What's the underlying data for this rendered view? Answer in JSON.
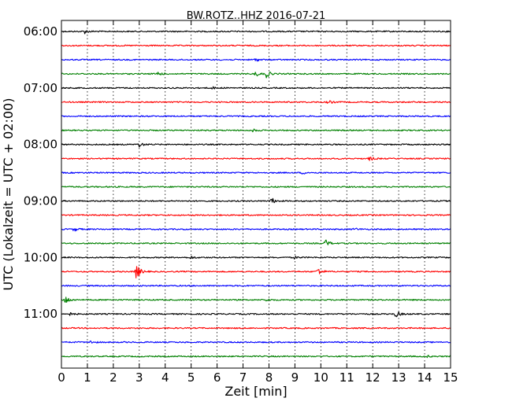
{
  "chart_data": {
    "type": "line",
    "title": "BW.ROTZ..HHZ 2016-07-21",
    "xlabel": "Zeit  [min]",
    "ylabel": "UTC (Lokalzeit = UTC + 02:00)",
    "xlim": [
      0,
      15
    ],
    "x_ticks": [
      "0",
      "1",
      "2",
      "3",
      "4",
      "5",
      "6",
      "7",
      "8",
      "9",
      "10",
      "11",
      "12",
      "13",
      "14",
      "15"
    ],
    "y_ticks": [
      "06:00",
      "07:00",
      "08:00",
      "09:00",
      "10:00",
      "11:00"
    ],
    "y_ticks_at_trace": [
      0,
      4,
      8,
      12,
      16,
      20
    ],
    "trace_interval_min": 15,
    "traces_per_hour": 4,
    "grid": "vertical dotted at each minute",
    "colors": [
      "#000000",
      "#ff0000",
      "#0000ff",
      "#008000"
    ],
    "traces": [
      {
        "start": "06:00",
        "color": "#000000",
        "events": [
          {
            "t": 0.9,
            "amp": 0.25
          }
        ]
      },
      {
        "start": "06:15",
        "color": "#ff0000",
        "events": []
      },
      {
        "start": "06:30",
        "color": "#0000ff",
        "events": [
          {
            "t": 7.5,
            "amp": 0.2
          }
        ]
      },
      {
        "start": "06:45",
        "color": "#008000",
        "events": [
          {
            "t": 3.7,
            "amp": 0.3
          },
          {
            "t": 7.5,
            "amp": 0.3
          },
          {
            "t": 7.9,
            "amp": 0.5
          }
        ]
      },
      {
        "start": "07:00",
        "color": "#000000",
        "events": [
          {
            "t": 5.8,
            "amp": 0.15
          }
        ]
      },
      {
        "start": "07:15",
        "color": "#ff0000",
        "events": [
          {
            "t": 10.3,
            "amp": 0.2
          }
        ]
      },
      {
        "start": "07:30",
        "color": "#0000ff",
        "events": []
      },
      {
        "start": "07:45",
        "color": "#008000",
        "events": [
          {
            "t": 7.4,
            "amp": 0.15
          }
        ]
      },
      {
        "start": "08:00",
        "color": "#000000",
        "events": [
          {
            "t": 3.0,
            "amp": 0.3
          }
        ]
      },
      {
        "start": "08:15",
        "color": "#ff0000",
        "events": [
          {
            "t": 11.9,
            "amp": 0.25
          }
        ]
      },
      {
        "start": "08:30",
        "color": "#0000ff",
        "events": [
          {
            "t": 9.3,
            "amp": 0.15
          }
        ]
      },
      {
        "start": "08:45",
        "color": "#008000",
        "events": []
      },
      {
        "start": "09:00",
        "color": "#000000",
        "events": [
          {
            "t": 8.1,
            "amp": 0.4
          }
        ]
      },
      {
        "start": "09:15",
        "color": "#ff0000",
        "events": []
      },
      {
        "start": "09:30",
        "color": "#0000ff",
        "events": [
          {
            "t": 0.5,
            "amp": 0.25
          },
          {
            "t": 11.3,
            "amp": 0.15
          }
        ]
      },
      {
        "start": "09:45",
        "color": "#008000",
        "events": [
          {
            "t": 10.2,
            "amp": 0.45
          }
        ]
      },
      {
        "start": "10:00",
        "color": "#000000",
        "events": [
          {
            "t": 5.0,
            "amp": 0.15
          },
          {
            "t": 9.0,
            "amp": 0.15
          }
        ]
      },
      {
        "start": "10:15",
        "color": "#ff0000",
        "events": [
          {
            "t": 2.9,
            "amp": 1.0
          },
          {
            "t": 9.9,
            "amp": 0.5
          }
        ]
      },
      {
        "start": "10:30",
        "color": "#0000ff",
        "events": []
      },
      {
        "start": "10:45",
        "color": "#008000",
        "events": [
          {
            "t": 0.15,
            "amp": 0.6
          },
          {
            "t": 7.9,
            "amp": 0.15
          }
        ]
      },
      {
        "start": "11:00",
        "color": "#000000",
        "events": [
          {
            "t": 0.3,
            "amp": 0.2
          },
          {
            "t": 12.9,
            "amp": 0.45
          }
        ]
      },
      {
        "start": "11:15",
        "color": "#ff0000",
        "events": []
      },
      {
        "start": "11:30",
        "color": "#0000ff",
        "events": [
          {
            "t": 1.1,
            "amp": 0.2
          }
        ]
      },
      {
        "start": "11:45",
        "color": "#008000",
        "events": [
          {
            "t": 14.1,
            "amp": 0.1
          }
        ]
      }
    ]
  }
}
